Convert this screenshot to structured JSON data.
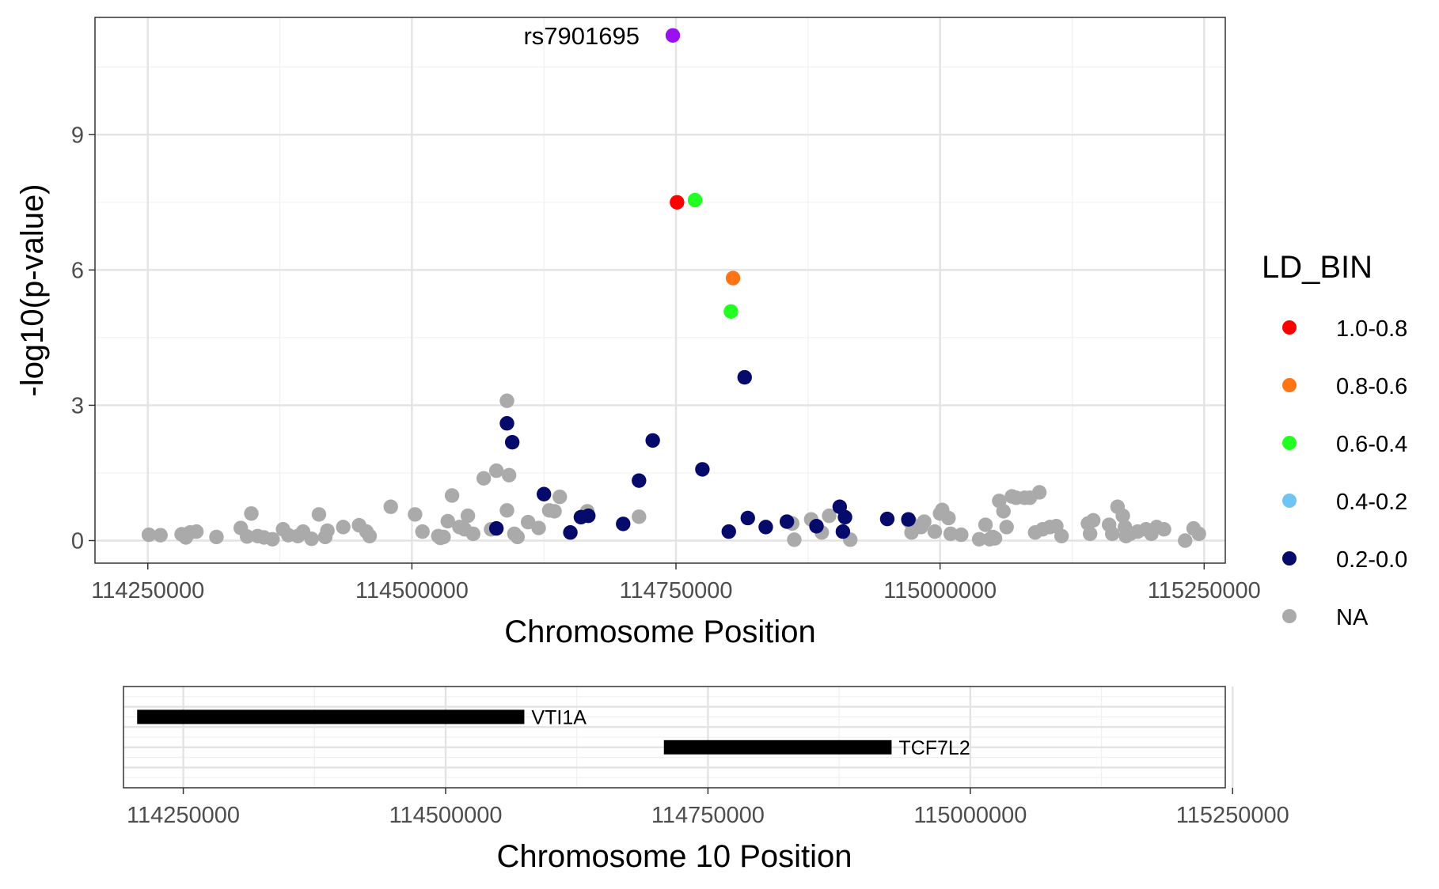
{
  "chart_data": [
    {
      "type": "scatter",
      "xlabel": "Chromosome Position",
      "ylabel": "-log10(p-value)",
      "xlim": [
        114200000,
        115270000
      ],
      "ylim": [
        -0.5,
        11.6
      ],
      "xticks": [
        114250000,
        114500000,
        114750000,
        115000000,
        115250000
      ],
      "xtick_labels": [
        "114250000",
        "114500000",
        "114750000",
        "115000000",
        "115250000"
      ],
      "yticks": [
        0,
        3,
        6,
        9
      ],
      "ytick_labels": [
        "0",
        "3",
        "6",
        "9"
      ],
      "grid": true,
      "legend": {
        "title": "LD_BIN",
        "placement": "right",
        "entries": [
          {
            "label": "1.0-0.8",
            "color": "#FF0000"
          },
          {
            "label": "0.8-0.6",
            "color": "#FF7415"
          },
          {
            "label": "0.6-0.4",
            "color": "#22FF22"
          },
          {
            "label": "0.4-0.2",
            "color": "#6EC5F5"
          },
          {
            "label": "0.2-0.0",
            "color": "#050A6B"
          },
          {
            "label": "NA",
            "color": "#AAAAAA"
          }
        ]
      },
      "annotation": {
        "label": "rs7901695",
        "x": 114747000,
        "y": 11.2
      },
      "series": [
        {
          "ld_bin": "lead",
          "color": "#9B10F0",
          "points": [
            [
              114747000,
              11.2
            ]
          ]
        },
        {
          "ld_bin": "1.0-0.8",
          "color": "#FF0000",
          "points": [
            [
              114751000,
              7.5
            ]
          ]
        },
        {
          "ld_bin": "0.8-0.6",
          "color": "#FF7415",
          "points": [
            [
              114804000,
              5.82
            ]
          ]
        },
        {
          "ld_bin": "0.6-0.4",
          "color": "#22FF22",
          "points": [
            [
              114768000,
              7.55
            ],
            [
              114802000,
              5.08
            ]
          ]
        },
        {
          "ld_bin": "0.4-0.2",
          "color": "#6EC5F5",
          "points": []
        },
        {
          "ld_bin": "0.2-0.0",
          "color": "#050A6B",
          "points": [
            [
              114590000,
              2.6
            ],
            [
              114595000,
              2.18
            ],
            [
              114580000,
              0.27
            ],
            [
              114625000,
              1.03
            ],
            [
              114650000,
              0.18
            ],
            [
              114660000,
              0.52
            ],
            [
              114667000,
              0.55
            ],
            [
              114700000,
              0.37
            ],
            [
              114715000,
              1.33
            ],
            [
              114728000,
              2.22
            ],
            [
              114775000,
              1.58
            ],
            [
              114800000,
              0.2
            ],
            [
              114815000,
              3.62
            ],
            [
              114818000,
              0.5
            ],
            [
              114835000,
              0.3
            ],
            [
              114855000,
              0.42
            ],
            [
              114883000,
              0.32
            ],
            [
              114905000,
              0.75
            ],
            [
              114910000,
              0.52
            ],
            [
              114908000,
              0.2
            ],
            [
              114950000,
              0.48
            ],
            [
              114970000,
              0.47
            ]
          ]
        },
        {
          "ld_bin": "NA",
          "color": "#AAAAAA",
          "points": [
            [
              114251000,
              0.13
            ],
            [
              114262000,
              0.12
            ],
            [
              114282000,
              0.14
            ],
            [
              114286000,
              0.07
            ],
            [
              114290000,
              0.18
            ],
            [
              114296000,
              0.2
            ],
            [
              114315000,
              0.08
            ],
            [
              114338000,
              0.28
            ],
            [
              114344000,
              0.09
            ],
            [
              114348000,
              0.6
            ],
            [
              114354000,
              0.1
            ],
            [
              114360000,
              0.07
            ],
            [
              114368000,
              0.03
            ],
            [
              114378000,
              0.25
            ],
            [
              114383000,
              0.12
            ],
            [
              114392000,
              0.1
            ],
            [
              114397000,
              0.2
            ],
            [
              114405000,
              0.04
            ],
            [
              114412000,
              0.58
            ],
            [
              114418000,
              0.08
            ],
            [
              114420000,
              0.22
            ],
            [
              114435000,
              0.3
            ],
            [
              114450000,
              0.34
            ],
            [
              114457000,
              0.2
            ],
            [
              114460000,
              0.1
            ],
            [
              114480000,
              0.75
            ],
            [
              114503000,
              0.58
            ],
            [
              114510000,
              0.2
            ],
            [
              114525000,
              0.1
            ],
            [
              114527000,
              0.06
            ],
            [
              114530000,
              0.08
            ],
            [
              114534000,
              0.43
            ],
            [
              114538000,
              1.0
            ],
            [
              114545000,
              0.3
            ],
            [
              114550000,
              0.25
            ],
            [
              114553000,
              0.55
            ],
            [
              114558000,
              0.15
            ],
            [
              114568000,
              1.38
            ],
            [
              114575000,
              0.25
            ],
            [
              114580000,
              1.55
            ],
            [
              114590000,
              0.67
            ],
            [
              114590000,
              3.1
            ],
            [
              114592000,
              1.45
            ],
            [
              114597000,
              0.15
            ],
            [
              114600000,
              0.08
            ],
            [
              114610000,
              0.41
            ],
            [
              114620000,
              0.28
            ],
            [
              114630000,
              0.67
            ],
            [
              114635000,
              0.65
            ],
            [
              114640000,
              0.97
            ],
            [
              114666000,
              0.65
            ],
            [
              114715000,
              0.53
            ],
            [
              114860000,
              0.38
            ],
            [
              114862000,
              0.02
            ],
            [
              114878000,
              0.47
            ],
            [
              114888000,
              0.18
            ],
            [
              114895000,
              0.55
            ],
            [
              114915000,
              0.02
            ],
            [
              114970000,
              0.45
            ],
            [
              114972000,
              0.4
            ],
            [
              114973000,
              0.18
            ],
            [
              114982000,
              0.3
            ],
            [
              114985000,
              0.42
            ],
            [
              114995000,
              0.2
            ],
            [
              115000000,
              0.6
            ],
            [
              115002000,
              0.68
            ],
            [
              115008000,
              0.5
            ],
            [
              115010000,
              0.15
            ],
            [
              115020000,
              0.13
            ],
            [
              115037000,
              0.03
            ],
            [
              115043000,
              0.35
            ],
            [
              115047000,
              0.03
            ],
            [
              115050000,
              0.08
            ],
            [
              115052000,
              0.05
            ],
            [
              115056000,
              0.88
            ],
            [
              115060000,
              0.65
            ],
            [
              115063000,
              0.3
            ],
            [
              115068000,
              0.98
            ],
            [
              115072000,
              0.95
            ],
            [
              115080000,
              0.95
            ],
            [
              115085000,
              0.95
            ],
            [
              115090000,
              0.18
            ],
            [
              115094000,
              1.07
            ],
            [
              115097000,
              0.25
            ],
            [
              115104000,
              0.3
            ],
            [
              115110000,
              0.32
            ],
            [
              115115000,
              0.1
            ],
            [
              115140000,
              0.38
            ],
            [
              115142000,
              0.15
            ],
            [
              115145000,
              0.45
            ],
            [
              115160000,
              0.35
            ],
            [
              115163000,
              0.15
            ],
            [
              115168000,
              0.75
            ],
            [
              115173000,
              0.55
            ],
            [
              115175000,
              0.3
            ],
            [
              115176000,
              0.1
            ],
            [
              115180000,
              0.15
            ],
            [
              115187000,
              0.2
            ],
            [
              115195000,
              0.25
            ],
            [
              115200000,
              0.15
            ],
            [
              115205000,
              0.3
            ],
            [
              115212000,
              0.25
            ],
            [
              115232000,
              0.0
            ],
            [
              115240000,
              0.27
            ],
            [
              115245000,
              0.15
            ]
          ]
        }
      ]
    },
    {
      "type": "bar",
      "subtype": "gene-track",
      "xlabel": "Chromosome 10 Position",
      "xlim": [
        114193000,
        115243000
      ],
      "xticks": [
        114250000,
        114500000,
        114750000,
        115000000,
        115250000
      ],
      "xtick_labels": [
        "114250000",
        "114500000",
        "114750000",
        "115000000",
        "115250000"
      ],
      "grid": true,
      "genes": [
        {
          "name": "VTI1A",
          "start": 114206000,
          "end": 114575000
        },
        {
          "name": "TCF7L2",
          "start": 114708000,
          "end": 114925000
        }
      ]
    }
  ]
}
